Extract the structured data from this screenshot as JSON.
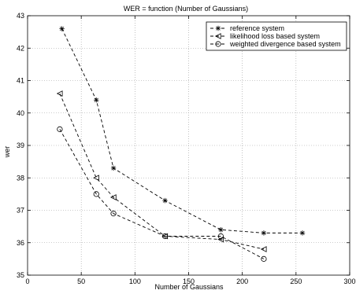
{
  "chart_data": {
    "type": "line",
    "title": "WER = function (Number of Gaussians)",
    "xlabel": "Number of Gaussians",
    "ylabel": "wer",
    "xlim": [
      0,
      300
    ],
    "ylim": [
      35,
      43
    ],
    "xticks": [
      0,
      50,
      100,
      150,
      200,
      250,
      300
    ],
    "yticks": [
      35,
      36,
      37,
      38,
      39,
      40,
      41,
      42,
      43
    ],
    "grid": true,
    "legend_position": "top-right",
    "series": [
      {
        "name": "reference system",
        "marker": "asterisk",
        "x": [
          32,
          64,
          80,
          128,
          180,
          220,
          256
        ],
        "y": [
          42.6,
          40.4,
          38.3,
          37.3,
          36.4,
          36.3,
          36.3
        ]
      },
      {
        "name": "likelihood loss based system",
        "marker": "triangle-left",
        "x": [
          30,
          64,
          80,
          128,
          180,
          220
        ],
        "y": [
          40.6,
          38.0,
          37.4,
          36.2,
          36.1,
          35.8
        ]
      },
      {
        "name": "weighted divergence based system",
        "marker": "circle",
        "x": [
          30,
          64,
          80,
          128,
          180,
          220
        ],
        "y": [
          39.5,
          37.5,
          36.9,
          36.2,
          36.2,
          35.5
        ]
      }
    ]
  }
}
